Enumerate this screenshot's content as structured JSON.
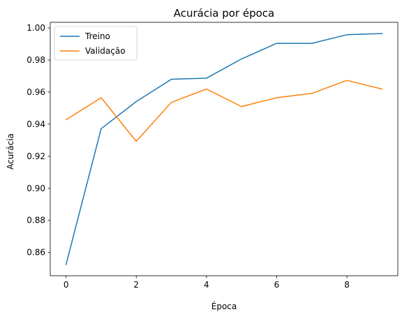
{
  "chart_data": {
    "type": "line",
    "title": "Acurácia por época",
    "xlabel": "Época",
    "ylabel": "Acurácia",
    "x": [
      0,
      1,
      2,
      3,
      4,
      5,
      6,
      7,
      8,
      9
    ],
    "xlim": [
      -0.45,
      9.45
    ],
    "ylim": [
      0.8455,
      1.0035
    ],
    "xticks": [
      0,
      2,
      4,
      6,
      8
    ],
    "yticks": [
      0.86,
      0.88,
      0.9,
      0.92,
      0.94,
      0.96,
      0.98,
      1.0
    ],
    "xtick_labels": [
      "0",
      "2",
      "4",
      "6",
      "8"
    ],
    "ytick_labels": [
      "0.86",
      "0.88",
      "0.90",
      "0.92",
      "0.94",
      "0.96",
      "0.98",
      "1.00"
    ],
    "grid": false,
    "legend_position": "top-left",
    "series": [
      {
        "name": "Treino",
        "color": "#1f77b4",
        "values": [
          0.8525,
          0.9372,
          0.9541,
          0.968,
          0.9687,
          0.9807,
          0.9904,
          0.9904,
          0.9958,
          0.9965
        ]
      },
      {
        "name": "Validação",
        "color": "#ff7f0e",
        "values": [
          0.9428,
          0.9565,
          0.9293,
          0.9536,
          0.9619,
          0.951,
          0.9565,
          0.9592,
          0.9673,
          0.9619
        ]
      }
    ]
  }
}
